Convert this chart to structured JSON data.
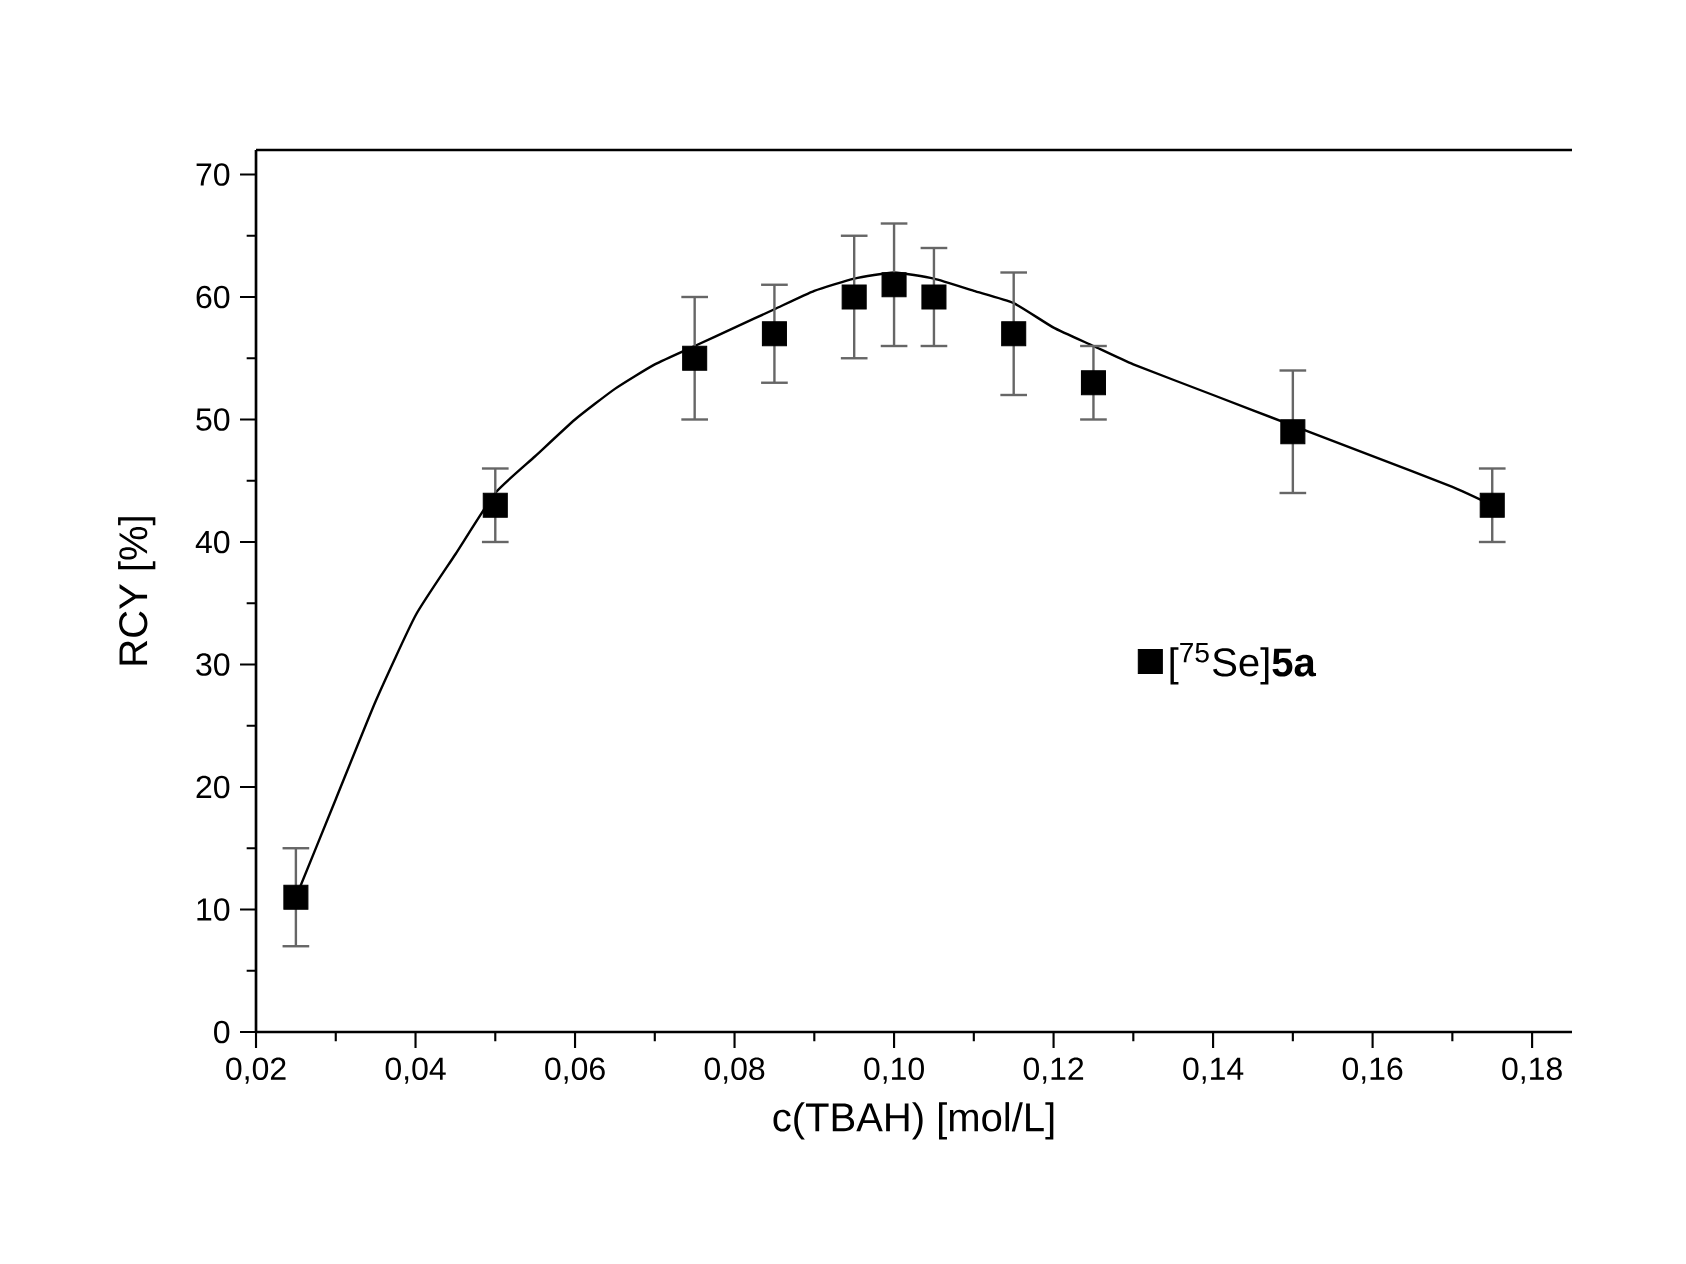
{
  "chart_data": {
    "type": "scatter",
    "xlabel": "c(TBAH) [mol/L]",
    "ylabel": "RCY [%]",
    "xlim": [
      0.02,
      0.185
    ],
    "ylim": [
      0,
      72
    ],
    "xticks": [
      {
        "value": 0.02,
        "label": "0,02"
      },
      {
        "value": 0.04,
        "label": "0,04"
      },
      {
        "value": 0.06,
        "label": "0,06"
      },
      {
        "value": 0.08,
        "label": "0,08"
      },
      {
        "value": 0.1,
        "label": "0,10"
      },
      {
        "value": 0.12,
        "label": "0,12"
      },
      {
        "value": 0.14,
        "label": "0,14"
      },
      {
        "value": 0.16,
        "label": "0,16"
      },
      {
        "value": 0.18,
        "label": "0,18"
      }
    ],
    "yticks": [
      0,
      10,
      20,
      30,
      40,
      50,
      60,
      70
    ],
    "legend": "right",
    "marker": "square",
    "series": [
      {
        "type": "line",
        "marker": "none",
        "color": "#000000",
        "x": [
          0.025,
          0.03,
          0.035,
          0.04,
          0.045,
          0.05,
          0.055,
          0.06,
          0.065,
          0.07,
          0.075,
          0.08,
          0.085,
          0.09,
          0.095,
          0.1,
          0.105,
          0.11,
          0.115,
          0.12,
          0.125,
          0.13,
          0.14,
          0.15,
          0.16,
          0.17,
          0.175
        ],
        "values": [
          11,
          19,
          27,
          34,
          39,
          44,
          47,
          50,
          52.5,
          54.5,
          56,
          57.5,
          59,
          60.5,
          61.5,
          62,
          61.5,
          60.5,
          59.5,
          57.5,
          56,
          54.5,
          52,
          49.5,
          47,
          44.5,
          43
        ]
      },
      {
        "name": "[$^{75}$Se]**5a**",
        "color": "#000000",
        "x": [
          0.025,
          0.05,
          0.075,
          0.085,
          0.095,
          0.1,
          0.105,
          0.115,
          0.125,
          0.15,
          0.175
        ],
        "values": [
          11,
          43,
          55,
          57,
          60,
          61,
          60,
          57,
          53,
          49,
          43
        ],
        "errors": [
          4,
          3,
          5,
          4,
          5,
          5,
          4,
          5,
          3,
          5,
          3
        ]
      }
    ]
  }
}
